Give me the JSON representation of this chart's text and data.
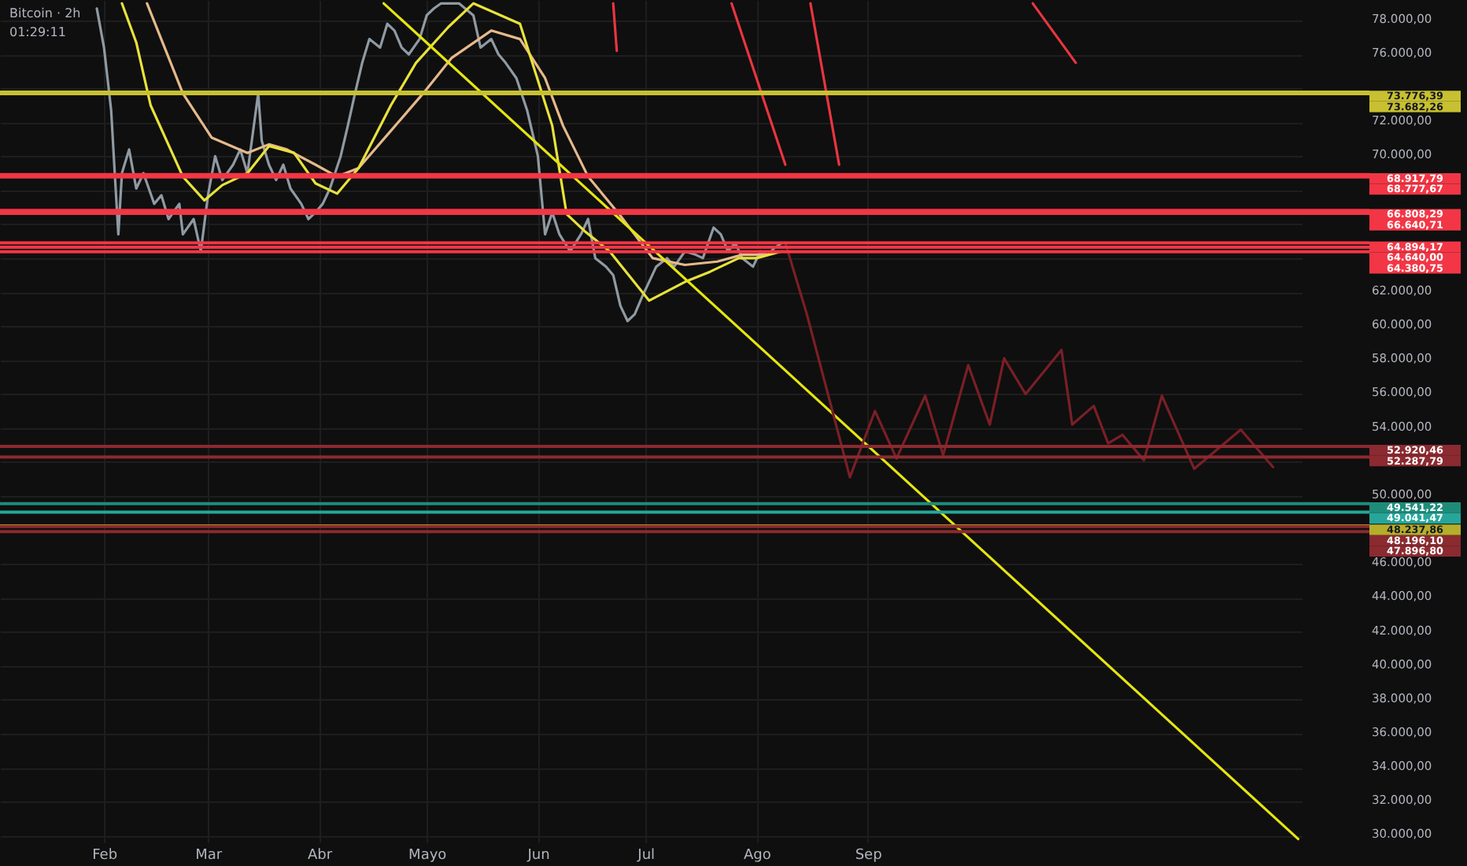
{
  "chart_data": {
    "type": "line",
    "title": "Bitcoin · 2h",
    "annotations": [
      "01:29:11"
    ],
    "xlim": [
      "--01-03",
      "--12-31"
    ],
    "xticks": [
      {
        "value": "--02-01",
        "label": "Feb"
      },
      {
        "value": "--03-01",
        "label": "Mar"
      },
      {
        "value": "--04-01",
        "label": "Abr"
      },
      {
        "value": "--05-01",
        "label": "Mayo"
      },
      {
        "value": "--06-01",
        "label": "Jun"
      },
      {
        "value": "--07-01",
        "label": "Jul"
      },
      {
        "value": "--08-01",
        "label": "Ago"
      },
      {
        "value": "--09-01",
        "label": "Sep"
      }
    ],
    "ylim": [
      29600,
      79200
    ],
    "yticks": [
      {
        "value": 30000,
        "label": "30.000,00"
      },
      {
        "value": 32000,
        "label": "32.000,00"
      },
      {
        "value": 34000,
        "label": "34.000,00"
      },
      {
        "value": 36000,
        "label": "36.000,00"
      },
      {
        "value": 38000,
        "label": "38.000,00"
      },
      {
        "value": 40000,
        "label": "40.000,00"
      },
      {
        "value": 42000,
        "label": "42.000,00"
      },
      {
        "value": 44000,
        "label": "44.000,00"
      },
      {
        "value": 46000,
        "label": "46.000,00"
      },
      {
        "value": 48000,
        "label": null
      },
      {
        "value": 50000,
        "label": "50.000,00"
      },
      {
        "value": 52000,
        "label": null
      },
      {
        "value": 54000,
        "label": "54.000,00"
      },
      {
        "value": 56000,
        "label": "56.000,00"
      },
      {
        "value": 58000,
        "label": "58.000,00"
      },
      {
        "value": 60000,
        "label": "60.000,00"
      },
      {
        "value": 62000,
        "label": "62.000,00"
      },
      {
        "value": 64000,
        "label": null
      },
      {
        "value": 66000,
        "label": null
      },
      {
        "value": 68000,
        "label": null
      },
      {
        "value": 70000,
        "label": "70.000,00"
      },
      {
        "value": 72000,
        "label": "72.000,00"
      },
      {
        "value": 74000,
        "label": null
      },
      {
        "value": 76000,
        "label": "76.000,00"
      },
      {
        "value": 78000,
        "label": "78.000,00"
      }
    ],
    "grid": true,
    "series": [
      {
        "color": "#8f9aa3",
        "x": [
          "--01-30",
          "--02-01",
          "--02-03",
          "--02-04",
          "--02-05",
          "--02-06",
          "--02-08",
          "--02-10",
          "--02-12",
          "--02-15",
          "--02-17",
          "--02-19",
          "--02-22",
          "--02-23",
          "--02-26",
          "--02-28",
          "--03-01",
          "--03-03",
          "--03-05",
          "--03-08",
          "--03-10",
          "--03-12",
          "--03-15",
          "--03-16",
          "--03-18",
          "--03-20",
          "--03-22",
          "--03-24",
          "--03-27",
          "--03-29",
          "--03-31",
          "--04-02",
          "--04-04",
          "--04-07",
          "--04-09",
          "--04-11",
          "--04-13",
          "--04-15",
          "--04-18",
          "--04-20",
          "--04-22",
          "--04-24",
          "--04-26",
          "--04-29",
          "--05-01",
          "--05-03",
          "--05-05",
          "--05-10",
          "--05-14",
          "--05-16",
          "--05-19",
          "--05-21",
          "--05-23",
          "--05-26",
          "--05-29",
          "--06-01",
          "--06-03",
          "--06-05",
          "--06-07",
          "--06-10",
          "--06-13",
          "--06-15",
          "--06-17",
          "--06-20",
          "--06-22",
          "--06-24",
          "--06-26",
          "--06-28",
          "--06-30",
          "--07-02",
          "--07-04",
          "--07-07",
          "--07-09",
          "--07-12",
          "--07-15",
          "--07-17",
          "--07-20",
          "--07-22",
          "--07-24",
          "--07-26",
          "--07-28",
          "--07-31",
          "--08-02",
          "--08-04",
          "--08-06",
          "--08-08"
        ],
        "values": [
          78700,
          76400,
          72700,
          69000,
          65400,
          69000,
          70400,
          68100,
          69000,
          67200,
          67700,
          66300,
          67200,
          65400,
          66300,
          64400,
          67700,
          70000,
          68600,
          69500,
          70400,
          69000,
          73700,
          70900,
          69500,
          68600,
          69500,
          68100,
          67200,
          66300,
          66700,
          67200,
          68100,
          70000,
          71800,
          73700,
          75500,
          76900,
          76400,
          77800,
          77400,
          76400,
          76000,
          76900,
          78300,
          78700,
          79000,
          79000,
          78300,
          76400,
          76900,
          76000,
          75500,
          74600,
          72700,
          70000,
          65400,
          66700,
          65400,
          64400,
          65400,
          66300,
          64000,
          63500,
          63000,
          61200,
          60300,
          60700,
          61700,
          62600,
          63500,
          64000,
          63500,
          64400,
          64200,
          64000,
          65800,
          65400,
          64400,
          64900,
          64000,
          63500,
          64400,
          64200,
          64600,
          64900
        ]
      },
      {
        "color": "#e6b98a",
        "x": [
          "--02-13",
          "--02-23",
          "--03-02",
          "--03-12",
          "--03-18",
          "--03-23",
          "--03-31",
          "--04-06",
          "--04-12",
          "--04-21",
          "--04-30",
          "--05-08",
          "--05-19",
          "--05-27",
          "--06-03",
          "--06-08",
          "--06-15",
          "--06-24",
          "--07-03",
          "--07-12",
          "--07-21",
          "--07-28",
          "--08-04"
        ],
        "values": [
          79000,
          73700,
          71100,
          70200,
          70700,
          70400,
          69500,
          68800,
          69300,
          71500,
          73700,
          75800,
          77400,
          76900,
          74600,
          71800,
          68800,
          66500,
          64000,
          63600,
          63800,
          64200,
          64200
        ]
      },
      {
        "color": "#e8e23a",
        "x": [
          "--02-06",
          "--02-10",
          "--02-14",
          "--02-23",
          "--02-29",
          "--03-05",
          "--03-12",
          "--03-18",
          "--03-25",
          "--03-31",
          "--04-06",
          "--04-12",
          "--04-21",
          "--04-28",
          "--05-07",
          "--05-14",
          "--05-27",
          "--06-05",
          "--06-09",
          "--06-14",
          "--06-21",
          "--07-02",
          "--07-12",
          "--07-19",
          "--07-27",
          "--08-01",
          "--08-08"
        ],
        "values": [
          79000,
          76700,
          73000,
          68800,
          67400,
          68300,
          69000,
          70600,
          70200,
          68400,
          67800,
          69300,
          73000,
          75500,
          77600,
          79000,
          77800,
          71800,
          66600,
          65600,
          64400,
          61500,
          62600,
          63200,
          64000,
          64000,
          64400
        ]
      },
      {
        "color": "#e5e510",
        "x": [
          "--04-19",
          "--12-30"
        ],
        "values": [
          79000,
          29800
        ]
      },
      {
        "color": "#e8353f",
        "x": [
          "--06-22",
          "--06-23"
        ],
        "values": [
          79000,
          76200
        ]
      },
      {
        "color": "#e8353f",
        "x": [
          "--07-25",
          "--08-09"
        ],
        "values": [
          79000,
          69500
        ]
      },
      {
        "color": "#e8353f",
        "x": [
          "--08-16",
          "--08-24"
        ],
        "values": [
          79000,
          69500
        ]
      },
      {
        "color": "#e8353f",
        "x": [
          "--10-17",
          "--10-29"
        ],
        "values": [
          79000,
          75500
        ]
      },
      {
        "color": "#7a1f26",
        "x": [
          "--08-09",
          "--08-15",
          "--08-27",
          "--09-03",
          "--09-09",
          "--09-17",
          "--09-22",
          "--09-29",
          "--10-05",
          "--10-09",
          "--10-15",
          "--10-25",
          "--10-28",
          "--11-03",
          "--11-07",
          "--11-11",
          "--11-17",
          "--11-22",
          "--12-01",
          "--12-14",
          "--12-23"
        ],
        "values": [
          64900,
          60700,
          51100,
          55000,
          52200,
          55900,
          52400,
          57700,
          54200,
          58100,
          56000,
          58600,
          54200,
          55300,
          53100,
          53600,
          52100,
          55900,
          51600,
          53900,
          51700
        ]
      }
    ],
    "ref_lines": [
      {
        "axis": "y",
        "value": 73776.39,
        "label": "73.776,39",
        "color": "#c8c030"
      },
      {
        "axis": "y",
        "value": 73682.26,
        "label": "73.682,26",
        "color": "#c8c030"
      },
      {
        "axis": "y",
        "value": 68917.79,
        "label": "68.917,79",
        "color": "#f23645"
      },
      {
        "axis": "y",
        "value": 68777.67,
        "label": "68.777,67",
        "color": "#f23645"
      },
      {
        "axis": "y",
        "value": 66808.29,
        "label": "66.808,29",
        "color": "#f23645"
      },
      {
        "axis": "y",
        "value": 66640.71,
        "label": "66.640,71",
        "color": "#f23645"
      },
      {
        "axis": "y",
        "value": 64894.17,
        "label": "64.894,17",
        "color": "#f23645"
      },
      {
        "axis": "y",
        "value": 64640.0,
        "label": "64.640,00",
        "color": "#f23645"
      },
      {
        "axis": "y",
        "value": 64380.75,
        "label": "64.380,75",
        "color": "#f23645"
      },
      {
        "axis": "y",
        "value": 52920.46,
        "label": "52.920,46",
        "color": "#8b2a30"
      },
      {
        "axis": "y",
        "value": 52287.79,
        "label": "52.287,79",
        "color": "#8b2a30"
      },
      {
        "axis": "y",
        "value": 49541.22,
        "label": "49.541,22",
        "color": "#1f8c7a"
      },
      {
        "axis": "y",
        "value": 49041.47,
        "label": "49.041,47",
        "color": "#26a69a"
      },
      {
        "axis": "y",
        "value": 48237.86,
        "label": "48.237,86",
        "color": "#b5ae2a"
      },
      {
        "axis": "y",
        "value": 48196.1,
        "label": "48.196,10",
        "color": "#8b2a30"
      },
      {
        "axis": "y",
        "value": 47896.8,
        "label": "47.896,80",
        "color": "#8b2a30"
      }
    ]
  }
}
